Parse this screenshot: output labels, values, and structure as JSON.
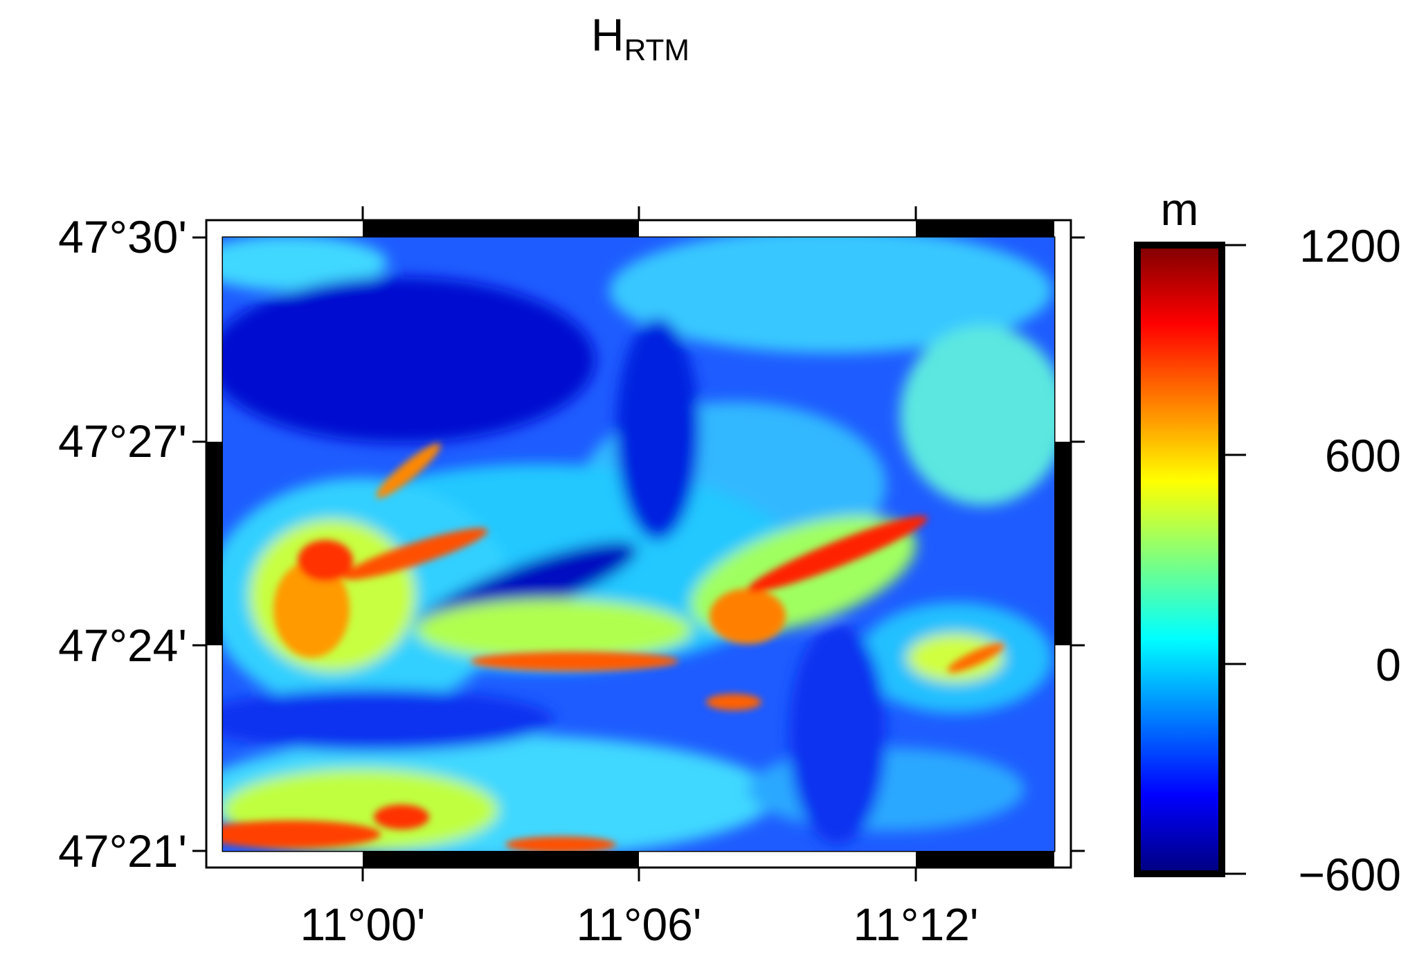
{
  "title": {
    "main": "H",
    "subscript": "RTM"
  },
  "map": {
    "y_ticks": [
      "47°30'",
      "47°27'",
      "47°24'",
      "47°21'"
    ],
    "x_ticks": [
      "11°00'",
      "11°06'",
      "11°12'"
    ]
  },
  "colorbar": {
    "unit": "m",
    "ticks": [
      "1200",
      "600",
      "0",
      "−600"
    ],
    "range": [
      -600,
      1200
    ],
    "colors": [
      "#00007f",
      "#0000ff",
      "#007fff",
      "#00ffff",
      "#7fff7f",
      "#ffff00",
      "#ff7f00",
      "#ff0000",
      "#7f0000"
    ]
  }
}
